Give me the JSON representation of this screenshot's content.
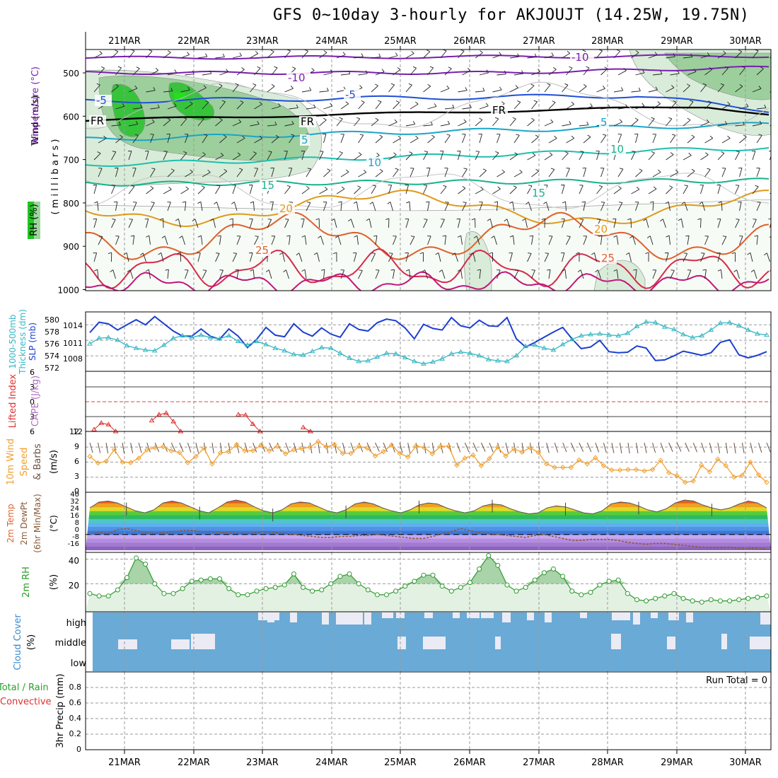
{
  "title": "GFS 0~10day 3-hourly for AKJOUJT (14.25W, 19.75N)",
  "colors": {
    "axis": "#000000",
    "grid": "#9a9a9a",
    "temp_cold": "#7a1fb0",
    "temp_blue": "#1f4fd6",
    "temp_teal": "#1aa5c8",
    "temp_green": "#18b28a",
    "temp_orange": "#e09a1a",
    "temp_hot": "#e0602a",
    "temp_red": "#d62a4a",
    "temp_magenta": "#c2157a",
    "rh_light": "#d9ecd9",
    "rh_mid": "#9ccf9c",
    "rh_green": "#37c43b",
    "slp": "#1c3fcf",
    "thickness": "#33b7c4",
    "lifted": "#e03030",
    "wind_speed": "#f0a030",
    "barb": "#6b5140",
    "dewpt": "#8a5a3a",
    "rh2m": "#2e9a2e",
    "cloud": "#6aaad6",
    "cloud_clear": "#ebebf5"
  },
  "dates": [
    "21MAR",
    "22MAR",
    "23MAR",
    "24MAR",
    "25MAR",
    "26MAR",
    "27MAR",
    "28MAR",
    "29MAR",
    "30MAR"
  ],
  "panels": {
    "upper": {
      "label_wind": "Wind (m/s)",
      "label_temp": "Temperature (°C)",
      "label_rh": "RH (%)",
      "label_p": "( m i l l i b a r s )",
      "yticks": [
        "500",
        "600",
        "700",
        "800",
        "900",
        "1000"
      ],
      "contour_labels": [
        "-10",
        "-10",
        "-5",
        "-5",
        "5",
        "5",
        "10",
        "10",
        "15",
        "15",
        "20",
        "20",
        "25",
        "25",
        "FR",
        "FR",
        "FR"
      ]
    },
    "slp": {
      "label_thick": "1000-500mb",
      "label_thick2": "Thickness (dm)",
      "label_slp": "SLP (mb)",
      "left_ticks": [
        "580",
        "578",
        "576",
        "574",
        "572"
      ],
      "right_ticks": [
        "1014",
        "1011",
        "1008"
      ]
    },
    "li": {
      "label_li": "Lifted Index",
      "label_cape": "CAPE (J/kg)",
      "yticks": [
        "6",
        "3",
        "0",
        "3",
        "6"
      ],
      "right_tick": "12"
    },
    "wind10": {
      "label_a": "10m Wind",
      "label_b": "Speed",
      "label_c": "& Barbs",
      "label_unit": "(m/s)",
      "yticks": [
        "12",
        "9",
        "6",
        "3",
        "0"
      ]
    },
    "temp2m": {
      "label_a": "2m Temp",
      "label_b": "2m DewPt",
      "label_c": "(6hr Min/Max)",
      "label_unit": "(°C)",
      "yticks": [
        "40",
        "32",
        "24",
        "16",
        "8",
        "0",
        "-8",
        "-16"
      ]
    },
    "rh2m": {
      "label_a": "2m RH",
      "label_unit": "(%)",
      "yticks": [
        "40",
        "20"
      ]
    },
    "cloud": {
      "label_a": "Cloud Cover",
      "label_unit": "(%)",
      "levels": [
        "high",
        "middle",
        "low"
      ]
    },
    "precip": {
      "label_a": "Total / Rain",
      "label_b": "Convective",
      "label_c": "3hr Precip (mm)",
      "run_total": "Run Total = 0",
      "yticks": [
        "0.8",
        "0.6",
        "0.4",
        "0.2",
        "0"
      ]
    }
  },
  "chart_data": [
    {
      "type": "line",
      "name": "SLP",
      "ylabel": "SLP (mb)",
      "ylim": [
        1005,
        1016.5
      ],
      "values": [
        1012.5,
        1014.5,
        1014.2,
        1013,
        1014,
        1015,
        1014,
        1015.6,
        1014.2,
        1012.8,
        1011.8,
        1011.8,
        1013.2,
        1011.8,
        1011.2,
        1013.2,
        1011.8,
        1009.6,
        1011.2,
        1013.5,
        1012,
        1011.7,
        1014.2,
        1012.6,
        1011.8,
        1013.4,
        1012.2,
        1011.6,
        1014.2,
        1013.1,
        1012.8,
        1014.4,
        1015.1,
        1014.8,
        1013.4,
        1011.3,
        1014.1,
        1013.3,
        1013,
        1015.4,
        1013.8,
        1013.4,
        1014.9,
        1013.8,
        1013.7,
        1015.4,
        1011.3,
        1009.7,
        1010.6,
        1011.6,
        1012.6,
        1013.5,
        1011.3,
        1009.4,
        1009.7,
        1011,
        1008.8,
        1008.6,
        1008.7,
        1009.9,
        1009.5,
        1007.1,
        1007.2,
        1008,
        1008.9,
        1008.5,
        1008.1,
        1008.6,
        1010.6,
        1011.1,
        1008.2,
        1007.6,
        1008.1,
        1008.8
      ]
    },
    {
      "type": "line",
      "name": "Thickness",
      "ylabel": "Thickness (dm)",
      "ylim": [
        571.5,
        581
      ],
      "values": [
        575.9,
        576.8,
        576.9,
        576.5,
        575.6,
        575.2,
        574.9,
        574.8,
        575.7,
        576.8,
        577.2,
        576.9,
        577.3,
        576.9,
        576.7,
        577.2,
        576.3,
        575.7,
        576.3,
        575.8,
        575.2,
        574.8,
        574.2,
        574.1,
        574.7,
        575.3,
        575.2,
        574.4,
        573.6,
        573.1,
        573.2,
        573.8,
        574.4,
        574.3,
        573.7,
        573.1,
        572.7,
        573,
        573.5,
        574.3,
        574.6,
        574.4,
        574,
        573.4,
        573.2,
        573.1,
        574,
        575.5,
        575.7,
        575.2,
        574.9,
        575.8,
        576.6,
        577.2,
        577.4,
        577.5,
        577.3,
        577.2,
        577.6,
        578.7,
        579.4,
        579.3,
        578.6,
        578.2,
        577.4,
        576.9,
        577.2,
        578.1,
        579.2,
        579.3,
        578.8,
        578.1,
        577.5,
        577.3
      ]
    },
    {
      "type": "line",
      "name": "Lifted Index",
      "ylabel": "Lifted Index",
      "ylim": [
        -6,
        6
      ],
      "values": [
        5.6,
        4.3,
        4.6,
        6,
        6,
        6,
        6,
        6,
        3.8,
        2.6,
        2.3,
        4,
        6,
        6,
        6,
        6,
        6,
        6,
        6,
        6,
        2.6,
        2.7,
        4.5,
        6,
        6,
        6,
        6,
        6,
        6,
        5.2,
        6
      ]
    },
    {
      "type": "line",
      "name": "10m Wind Speed",
      "ylabel": "(m/s)",
      "ylim": [
        0,
        12
      ],
      "values": [
        7.2,
        5.7,
        6.1,
        8.8,
        5.9,
        5.8,
        6.8,
        8.7,
        9.2,
        9.4,
        8.5,
        8.1,
        5.8,
        7.2,
        9.1,
        5.5,
        8,
        8.3,
        9.9,
        8.5,
        8.5,
        9.8,
        8.5,
        9.5,
        7.8,
        8.7,
        9,
        9.3,
        10.6,
        9.4,
        9.9,
        7.9,
        7.9,
        9.5,
        9.1,
        7.3,
        8.3,
        9.8,
        7.9,
        7.1,
        9.6,
        9.2,
        7.8,
        9.5,
        9.5,
        5.2,
        6.8,
        7.5,
        5.1,
        6.7,
        9.3,
        7.3,
        8.9,
        8.2,
        9.2,
        8.1,
        5.5,
        4.7,
        4.7,
        4.7,
        6.4,
        5.5,
        6.9,
        5.1,
        4.1,
        4.1,
        4.2,
        4.2,
        3.9,
        4.2,
        6.3,
        3.5,
        2.8,
        1.3,
        1.6,
        5.2,
        3.7,
        6.6,
        5.1,
        2.5,
        2.9,
        5.9,
        3,
        1.3
      ]
    },
    {
      "type": "area",
      "name": "2m Temp",
      "ylabel": "(°C)",
      "ylim": [
        -16,
        40
      ],
      "values": [
        27,
        33,
        34,
        32,
        28,
        24,
        22,
        25,
        32,
        34,
        32,
        28,
        24,
        22,
        27,
        33,
        35,
        33,
        28,
        24,
        22,
        25,
        31,
        33,
        32,
        28,
        24,
        22,
        25,
        31,
        33,
        31,
        27,
        24,
        22,
        25,
        30,
        32,
        31,
        27,
        24,
        22,
        24,
        29,
        31,
        30,
        26,
        23,
        21,
        22,
        27,
        29,
        28,
        25,
        22,
        21,
        24,
        31,
        33,
        32,
        29,
        25,
        23,
        26,
        32,
        35,
        34,
        30,
        27,
        25,
        27,
        31,
        34,
        32,
        27
      ]
    },
    {
      "type": "line",
      "name": "2m DewPt",
      "ylabel": "(°C)",
      "ylim": [
        -16,
        40
      ],
      "values": [
        0,
        2,
        1,
        5,
        6,
        4,
        2,
        1,
        2,
        3,
        4,
        4,
        3,
        3,
        2,
        2,
        1,
        1,
        2,
        3,
        2,
        1,
        0,
        -1,
        -2,
        -3,
        -3,
        -2,
        -2,
        -1,
        -1,
        0,
        -1,
        -2,
        -3,
        -4,
        -4,
        -2,
        1,
        3,
        6,
        4,
        2,
        1,
        0,
        -1,
        -2,
        -3,
        -1,
        0,
        -2,
        -4,
        -6,
        -6,
        -5,
        -5,
        -5,
        -6,
        -8,
        -9,
        -10,
        -9,
        -9,
        -10,
        -11,
        -12,
        -13,
        -13,
        -13,
        -13,
        -14,
        -14,
        -14,
        -15
      ]
    },
    {
      "type": "area",
      "name": "2m RH",
      "ylabel": "(%)",
      "ylim": [
        0,
        45
      ],
      "values": [
        12,
        10,
        10,
        15,
        25,
        41,
        36,
        20,
        12,
        12,
        16,
        22,
        23,
        24,
        24,
        16,
        11,
        11,
        14,
        16,
        17,
        19,
        28,
        17,
        14,
        15,
        20,
        26,
        28,
        20,
        15,
        11,
        11,
        14,
        18,
        22,
        27,
        27,
        18,
        14,
        17,
        21,
        32,
        43,
        35,
        19,
        14,
        17,
        23,
        29,
        32,
        26,
        14,
        11,
        13,
        19,
        22,
        23,
        12,
        7,
        6,
        8,
        10,
        12,
        8,
        6,
        5,
        7,
        6,
        6,
        7,
        8,
        9,
        10
      ]
    },
    {
      "type": "bar",
      "name": "3hr Precip",
      "ylabel": "3hr Precip (mm)",
      "ylim": [
        0,
        1.0
      ],
      "values": [
        0,
        0,
        0,
        0,
        0,
        0,
        0,
        0,
        0,
        0
      ]
    }
  ]
}
